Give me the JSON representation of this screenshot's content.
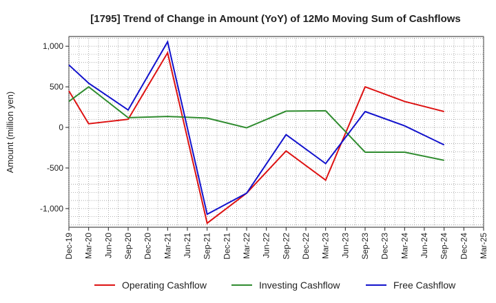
{
  "chart_data": {
    "type": "line",
    "title": "[1795]  Trend of Change in Amount (YoY) of 12Mo Moving Sum of Cashflows",
    "xlabel": "",
    "ylabel": "Amount (million yen)",
    "categories": [
      "Dec-19",
      "Mar-20",
      "Jun-20",
      "Sep-20",
      "Dec-20",
      "Mar-21",
      "Jun-21",
      "Sep-21",
      "Dec-21",
      "Mar-22",
      "Jun-22",
      "Sep-22",
      "Dec-22",
      "Mar-23",
      "Jun-23",
      "Sep-23",
      "Dec-23",
      "Mar-24",
      "Jun-24",
      "Sep-24",
      "Dec-24",
      "Mar-25"
    ],
    "ylim": [
      -1230,
      1120
    ],
    "yticks": [
      1000,
      500,
      0,
      -500,
      -1000
    ],
    "ytick_labels": [
      "1,000",
      "500",
      "0",
      "-500",
      "-1,000"
    ],
    "grid": true,
    "legend_position": "bottom",
    "series": [
      {
        "name": "Operating Cashflow",
        "color": "#dd1111",
        "values": [
          450,
          45,
          null,
          100,
          null,
          920,
          null,
          -1180,
          null,
          -810,
          null,
          -290,
          null,
          -650,
          null,
          500,
          null,
          320,
          null,
          195,
          null,
          null
        ]
      },
      {
        "name": "Investing Cashflow",
        "color": "#2e8b2e",
        "values": [
          320,
          500,
          null,
          120,
          null,
          135,
          null,
          115,
          null,
          -5,
          null,
          200,
          null,
          205,
          null,
          -305,
          null,
          -305,
          null,
          -405,
          null,
          null
        ]
      },
      {
        "name": "Free Cashflow",
        "color": "#1111cc",
        "values": [
          770,
          545,
          null,
          215,
          null,
          1055,
          null,
          -1070,
          null,
          -810,
          null,
          -90,
          null,
          -445,
          null,
          195,
          null,
          20,
          null,
          -215,
          null,
          null
        ]
      }
    ]
  }
}
